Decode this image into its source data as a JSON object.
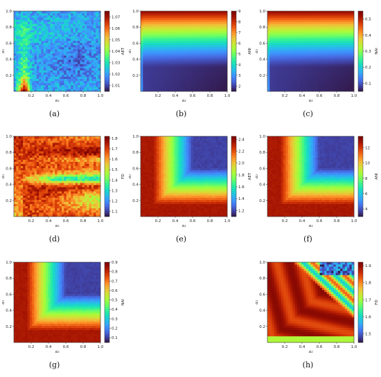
{
  "figure": {
    "panels": [
      {
        "caption": "(a)",
        "chart_data": {
          "type": "heatmap",
          "xlabel": "α₂",
          "ylabel": "α₁",
          "xlim": [
            0,
            1
          ],
          "ylim": [
            0,
            1
          ],
          "xticks": [
            "0.2",
            "0.4",
            "0.6",
            "0.8",
            "1.0"
          ],
          "yticks": [
            "0.2",
            "0.4",
            "0.6",
            "0.8",
            "1.0"
          ],
          "colorbar_label": "AET",
          "colorbar_range": [
            1.005,
            1.075
          ],
          "colorbar_ticks": [
            "1.01",
            "1.02",
            "1.03",
            "1.04",
            "1.05",
            "1.06",
            "1.07"
          ],
          "pattern": "noise"
        }
      },
      {
        "caption": "(b)",
        "chart_data": {
          "type": "heatmap",
          "xlabel": "α₂",
          "ylabel": "α₁",
          "xlim": [
            0,
            1
          ],
          "ylim": [
            0,
            1
          ],
          "xticks": [
            "0.2",
            "0.4",
            "0.6",
            "0.8",
            "1.0"
          ],
          "yticks": [
            "0.2",
            "0.4",
            "0.6",
            "0.8",
            "1.0"
          ],
          "colorbar_label": "ANI",
          "colorbar_range": [
            1.5,
            9
          ],
          "colorbar_ticks": [
            "2",
            "3",
            "4",
            "5",
            "6",
            "7",
            "8",
            "9"
          ],
          "pattern": "vertical"
        }
      },
      {
        "caption": "(c)",
        "chart_data": {
          "type": "heatmap",
          "xlabel": "α₂",
          "ylabel": "α₁",
          "xlim": [
            0,
            1
          ],
          "ylim": [
            0,
            1
          ],
          "xticks": [
            "0.2",
            "0.4",
            "0.6",
            "0.8",
            "1.0"
          ],
          "yticks": [
            "0.2",
            "0.4",
            "0.6",
            "0.8",
            "1.0"
          ],
          "colorbar_label": "NAI",
          "colorbar_range": [
            0.05,
            0.55
          ],
          "colorbar_ticks": [
            "0.1",
            "0.2",
            "0.3",
            "0.4",
            "0.5"
          ],
          "pattern": "vertical"
        }
      },
      {
        "caption": "(d)",
        "chart_data": {
          "type": "heatmap",
          "xlabel": "α₂",
          "ylabel": "α₁",
          "xlim": [
            0,
            1
          ],
          "ylim": [
            0,
            1
          ],
          "xticks": [
            "0.2",
            "0.4",
            "0.6",
            "0.8",
            "1.0"
          ],
          "yticks": [
            "0.2",
            "0.4",
            "0.6",
            "0.8",
            "1.0"
          ],
          "colorbar_label": "FD",
          "colorbar_range": [
            1.05,
            1.82
          ],
          "colorbar_ticks": [
            "1.1",
            "1.2",
            "1.3",
            "1.4",
            "1.5",
            "1.6",
            "1.7",
            "1.8"
          ],
          "pattern": "bands"
        }
      },
      {
        "caption": "(e)",
        "chart_data": {
          "type": "heatmap",
          "xlabel": "α₂",
          "ylabel": "α₁",
          "xlim": [
            0,
            1
          ],
          "ylim": [
            0,
            1
          ],
          "xticks": [
            "0.2",
            "0.4",
            "0.6",
            "0.8",
            "1.0"
          ],
          "yticks": [
            "0.2",
            "0.4",
            "0.6",
            "0.8",
            "1.0"
          ],
          "colorbar_label": "AET",
          "colorbar_range": [
            1.1,
            2.45
          ],
          "colorbar_ticks": [
            "1.2",
            "1.4",
            "1.6",
            "1.8",
            "2.0",
            "2.2",
            "2.4"
          ],
          "pattern": "corner"
        }
      },
      {
        "caption": "(f)",
        "chart_data": {
          "type": "heatmap",
          "xlabel": "α₂",
          "ylabel": "α₁",
          "xlim": [
            0,
            1
          ],
          "ylim": [
            0,
            1
          ],
          "xticks": [
            "0.2",
            "0.4",
            "0.6",
            "0.8",
            "1.0"
          ],
          "yticks": [
            "0.2",
            "0.4",
            "0.6",
            "0.8",
            "1.0"
          ],
          "colorbar_label": "ANI",
          "colorbar_range": [
            3,
            13.5
          ],
          "colorbar_ticks": [
            "4",
            "6",
            "8",
            "10",
            "12"
          ],
          "pattern": "corner"
        }
      },
      {
        "caption": "(g)",
        "chart_data": {
          "type": "heatmap",
          "xlabel": "α₂",
          "ylabel": "α₁",
          "xlim": [
            0,
            1
          ],
          "ylim": [
            0,
            1
          ],
          "xticks": [
            "0.2",
            "0.4",
            "0.6",
            "0.8",
            "1.0"
          ],
          "yticks": [
            "0.2",
            "0.4",
            "0.6",
            "0.8",
            "1.0"
          ],
          "colorbar_label": "NAI",
          "colorbar_range": [
            0.05,
            0.9
          ],
          "colorbar_ticks": [
            "0.1",
            "0.2",
            "0.3",
            "0.4",
            "0.5",
            "0.6",
            "0.7",
            "0.8",
            "0.9"
          ],
          "pattern": "corner"
        }
      },
      {
        "caption": "(h)",
        "chart_data": {
          "type": "heatmap",
          "xlabel": "α₂",
          "ylabel": "α₁",
          "xlim": [
            0,
            1
          ],
          "ylim": [
            0,
            1
          ],
          "xticks": [
            "0.2",
            "0.4",
            "0.6",
            "0.8",
            "1.0"
          ],
          "yticks": [
            "0.2",
            "0.4",
            "0.6",
            "0.8",
            "1.0"
          ],
          "colorbar_label": "FD",
          "colorbar_range": [
            1.45,
            1.92
          ],
          "colorbar_ticks": [
            "1.5",
            "1.6",
            "1.7",
            "1.8",
            "1.9"
          ],
          "pattern": "fd-corner"
        }
      }
    ]
  }
}
